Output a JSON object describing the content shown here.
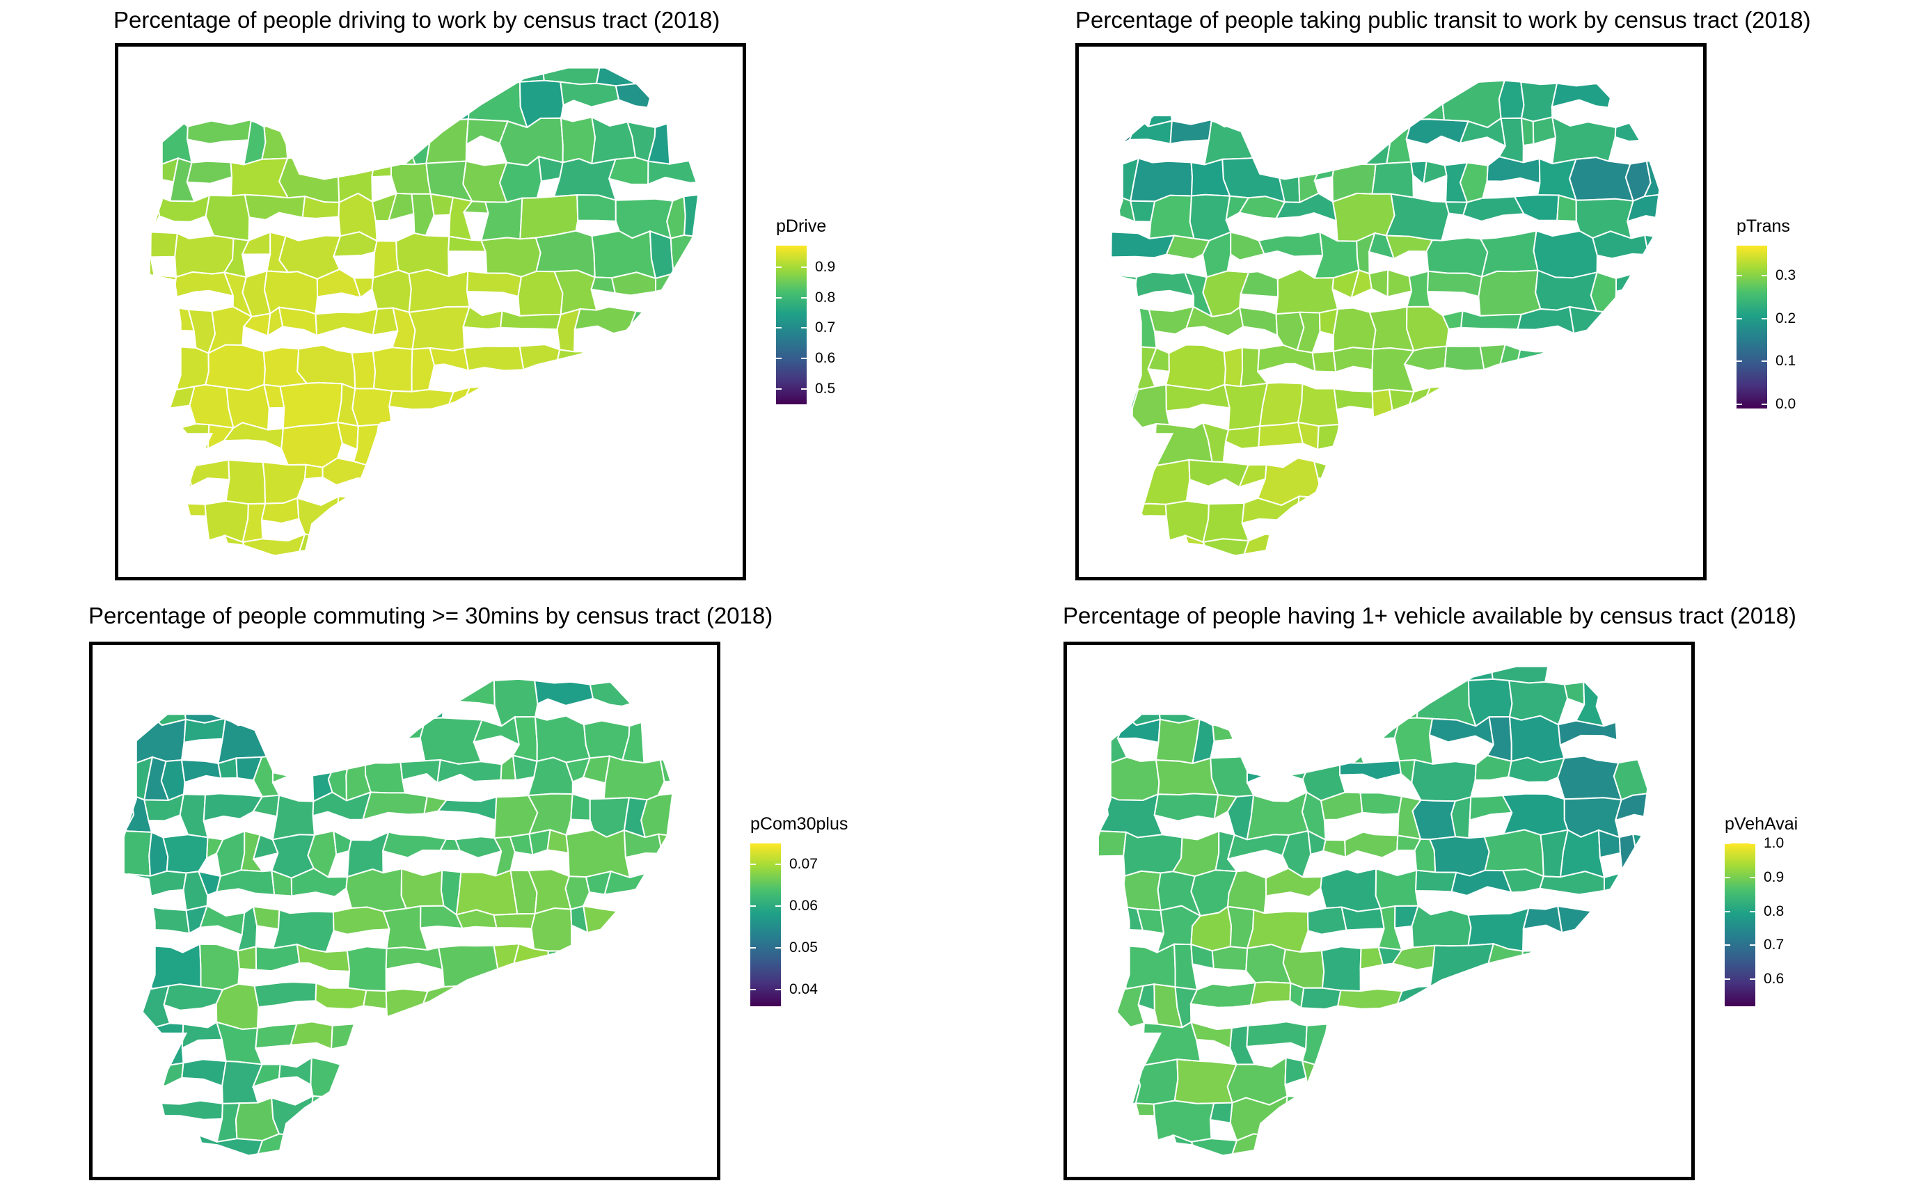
{
  "palette": {
    "viridis": [
      "#440154",
      "#46337e",
      "#365c8d",
      "#277f8e",
      "#1fa187",
      "#4ac16d",
      "#a0da39",
      "#fde725"
    ],
    "tract_border": "#ffffff",
    "frame": "#000000"
  },
  "panels": [
    {
      "id": "drive",
      "title": "Percentage of people driving to work by census tract (2018)",
      "legend": {
        "title": "pDrive",
        "min": 0.45,
        "max": 0.97,
        "ticks": [
          "0.9",
          "0.8",
          "0.7",
          "0.6",
          "0.5"
        ],
        "tick_values": [
          0.9,
          0.8,
          0.7,
          0.6,
          0.5
        ]
      },
      "variable": "share driving",
      "pattern_seed": 3,
      "value_range_hint": [
        0.55,
        0.95
      ]
    },
    {
      "id": "transit",
      "title": "Percentage of people taking public transit to work by census tract (2018)",
      "legend": {
        "title": "pTrans",
        "min": -0.01,
        "max": 0.37,
        "ticks": [
          "0.3",
          "0.2",
          "0.1",
          "0.0"
        ],
        "tick_values": [
          0.3,
          0.2,
          0.1,
          0.0
        ]
      },
      "variable": "share transit",
      "pattern_seed": 7,
      "value_range_hint": [
        0.0,
        0.36
      ]
    },
    {
      "id": "commute",
      "title": "Percentage of people commuting >= 30mins by census tract (2018)",
      "legend": {
        "title": "pCom30plus",
        "min": 0.036,
        "max": 0.075,
        "ticks": [
          "0.07",
          "0.06",
          "0.05",
          "0.04"
        ],
        "tick_values": [
          0.07,
          0.06,
          0.05,
          0.04
        ]
      },
      "variable": "share 30+ min",
      "pattern_seed": 11,
      "value_range_hint": [
        0.042,
        0.073
      ]
    },
    {
      "id": "vehicle",
      "title": "Percentage of people having 1+ vehicle available by census tract (2018)",
      "legend": {
        "title": "pVehAvai",
        "min": 0.52,
        "max": 1.0,
        "ticks": [
          "1.0",
          "0.9",
          "0.8",
          "0.7",
          "0.6"
        ],
        "tick_values": [
          1.0,
          0.9,
          0.8,
          0.7,
          0.6
        ]
      },
      "variable": "share with vehicle",
      "pattern_seed": 19,
      "value_range_hint": [
        0.58,
        1.0
      ]
    }
  ]
}
